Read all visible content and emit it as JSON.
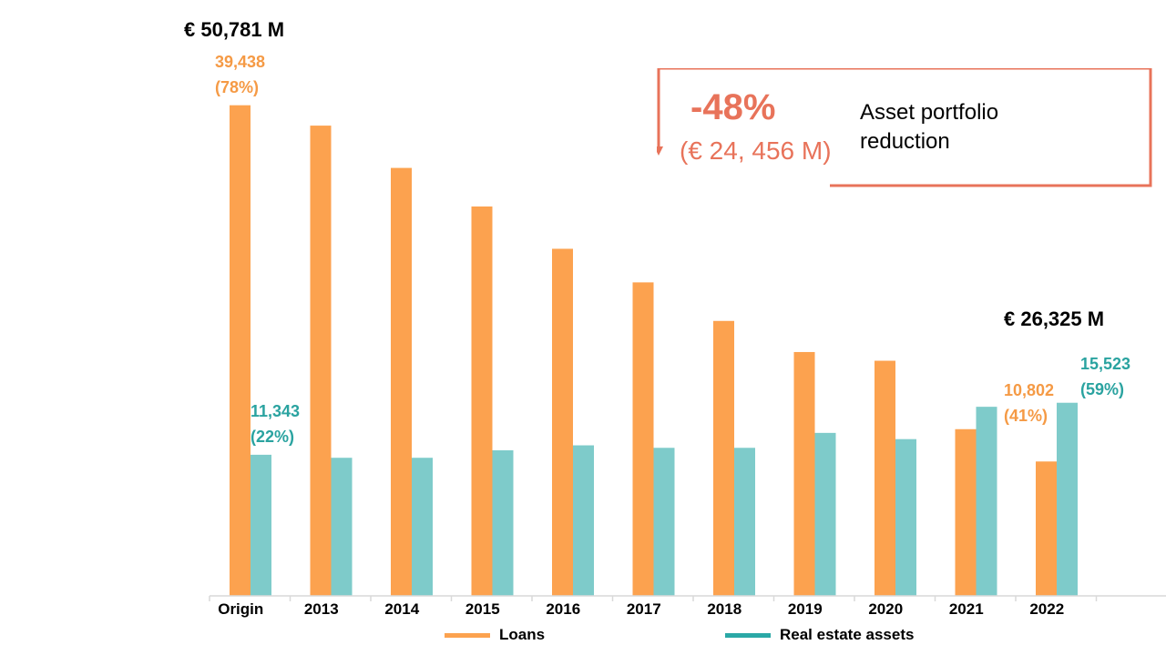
{
  "chart_data": {
    "type": "bar",
    "categories": [
      "Origin",
      "2013",
      "2014",
      "2015",
      "2016",
      "2017",
      "2018",
      "2019",
      "2020",
      "2021",
      "2022"
    ],
    "series": [
      {
        "name": "Loans",
        "color": "#fca24f",
        "values": [
          39438,
          37800,
          34400,
          31300,
          27900,
          25200,
          22100,
          19600,
          18900,
          13400,
          10802
        ]
      },
      {
        "name": "Real estate assets",
        "color": "#7ecbca",
        "values": [
          11343,
          11100,
          11100,
          11700,
          12100,
          11900,
          11900,
          13100,
          12600,
          15200,
          15523
        ]
      }
    ],
    "ylim": [
      0,
      40000
    ],
    "grid": false,
    "legend": "bottom",
    "data_labels": [
      {
        "series": 0,
        "index": 0,
        "value": "39,438",
        "share": "(78%)"
      },
      {
        "series": 1,
        "index": 0,
        "value": "11,343",
        "share": "(22%)"
      },
      {
        "series": 0,
        "index": 10,
        "value": "10,802",
        "share": "(41%)"
      },
      {
        "series": 1,
        "index": 10,
        "value": "15,523",
        "share": "(59%)"
      }
    ],
    "totals": {
      "origin": "€ 50,781 M",
      "final": "€ 26,325 M"
    }
  },
  "callout": {
    "percent": "-48%",
    "amount": "(€ 24, 456 M)",
    "text": "Asset portfolio reduction",
    "color": "#e8735a"
  }
}
